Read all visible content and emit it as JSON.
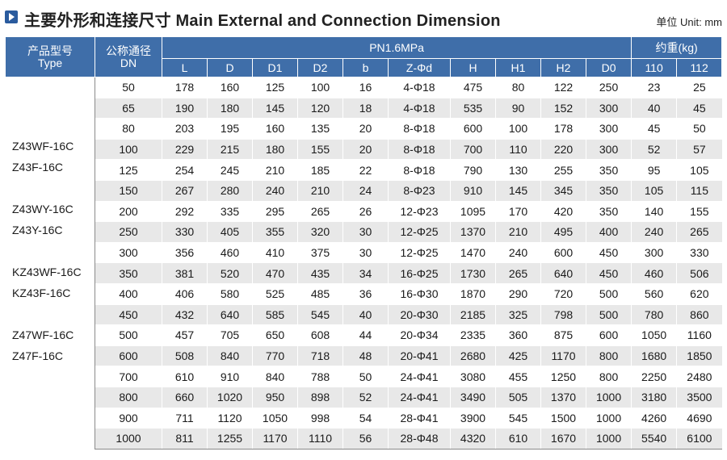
{
  "header": {
    "title": "主要外形和连接尺寸 Main External and Connection Dimension",
    "unit": "单位 Unit: mm"
  },
  "table": {
    "col_type_cn": "产品型号",
    "col_type_en": "Type",
    "col_dn_cn": "公称通径",
    "col_dn_en": "DN",
    "group_pressure": "PN1.6MPa",
    "group_weight": "约重(kg)",
    "sub_columns": [
      "L",
      "D",
      "D1",
      "D2",
      "b",
      "Z-Φd",
      "H",
      "H1",
      "H2",
      "D0",
      "110",
      "112"
    ],
    "types": [
      "Z43WF-16C",
      "Z43F-16C",
      "Z43WY-16C",
      "Z43Y-16C",
      "KZ43WF-16C",
      "KZ43F-16C",
      "Z47WF-16C",
      "Z47F-16C"
    ],
    "rows": [
      [
        "50",
        "178",
        "160",
        "125",
        "100",
        "16",
        "4-Φ18",
        "475",
        "80",
        "122",
        "250",
        "23",
        "25"
      ],
      [
        "65",
        "190",
        "180",
        "145",
        "120",
        "18",
        "4-Φ18",
        "535",
        "90",
        "152",
        "300",
        "40",
        "45"
      ],
      [
        "80",
        "203",
        "195",
        "160",
        "135",
        "20",
        "8-Φ18",
        "600",
        "100",
        "178",
        "300",
        "45",
        "50"
      ],
      [
        "100",
        "229",
        "215",
        "180",
        "155",
        "20",
        "8-Φ18",
        "700",
        "110",
        "220",
        "300",
        "52",
        "57"
      ],
      [
        "125",
        "254",
        "245",
        "210",
        "185",
        "22",
        "8-Φ18",
        "790",
        "130",
        "255",
        "350",
        "95",
        "105"
      ],
      [
        "150",
        "267",
        "280",
        "240",
        "210",
        "24",
        "8-Φ23",
        "910",
        "145",
        "345",
        "350",
        "105",
        "115"
      ],
      [
        "200",
        "292",
        "335",
        "295",
        "265",
        "26",
        "12-Φ23",
        "1095",
        "170",
        "420",
        "350",
        "140",
        "155"
      ],
      [
        "250",
        "330",
        "405",
        "355",
        "320",
        "30",
        "12-Φ25",
        "1370",
        "210",
        "495",
        "400",
        "240",
        "265"
      ],
      [
        "300",
        "356",
        "460",
        "410",
        "375",
        "30",
        "12-Φ25",
        "1470",
        "240",
        "600",
        "450",
        "300",
        "330"
      ],
      [
        "350",
        "381",
        "520",
        "470",
        "435",
        "34",
        "16-Φ25",
        "1730",
        "265",
        "640",
        "450",
        "460",
        "506"
      ],
      [
        "400",
        "406",
        "580",
        "525",
        "485",
        "36",
        "16-Φ30",
        "1870",
        "290",
        "720",
        "500",
        "560",
        "620"
      ],
      [
        "450",
        "432",
        "640",
        "585",
        "545",
        "40",
        "20-Φ30",
        "2185",
        "325",
        "798",
        "500",
        "780",
        "860"
      ],
      [
        "500",
        "457",
        "705",
        "650",
        "608",
        "44",
        "20-Φ34",
        "2335",
        "360",
        "875",
        "600",
        "1050",
        "1160"
      ],
      [
        "600",
        "508",
        "840",
        "770",
        "718",
        "48",
        "20-Φ41",
        "2680",
        "425",
        "1170",
        "800",
        "1680",
        "1850"
      ],
      [
        "700",
        "610",
        "910",
        "840",
        "788",
        "50",
        "24-Φ41",
        "3080",
        "455",
        "1250",
        "800",
        "2250",
        "2480"
      ],
      [
        "800",
        "660",
        "1020",
        "950",
        "898",
        "52",
        "24-Φ41",
        "3490",
        "505",
        "1370",
        "1000",
        "3180",
        "3500"
      ],
      [
        "900",
        "711",
        "1120",
        "1050",
        "998",
        "54",
        "28-Φ41",
        "3900",
        "545",
        "1500",
        "1000",
        "4260",
        "4690"
      ],
      [
        "1000",
        "811",
        "1255",
        "1170",
        "1110",
        "56",
        "28-Φ48",
        "4320",
        "610",
        "1670",
        "1000",
        "5540",
        "6100"
      ]
    ]
  },
  "colors": {
    "header_bg": "#3f6ea9",
    "row_alt": "#e8e8e8",
    "icon": "#2a5b9e"
  },
  "icons": {
    "title_marker": "play-triangle-icon"
  }
}
